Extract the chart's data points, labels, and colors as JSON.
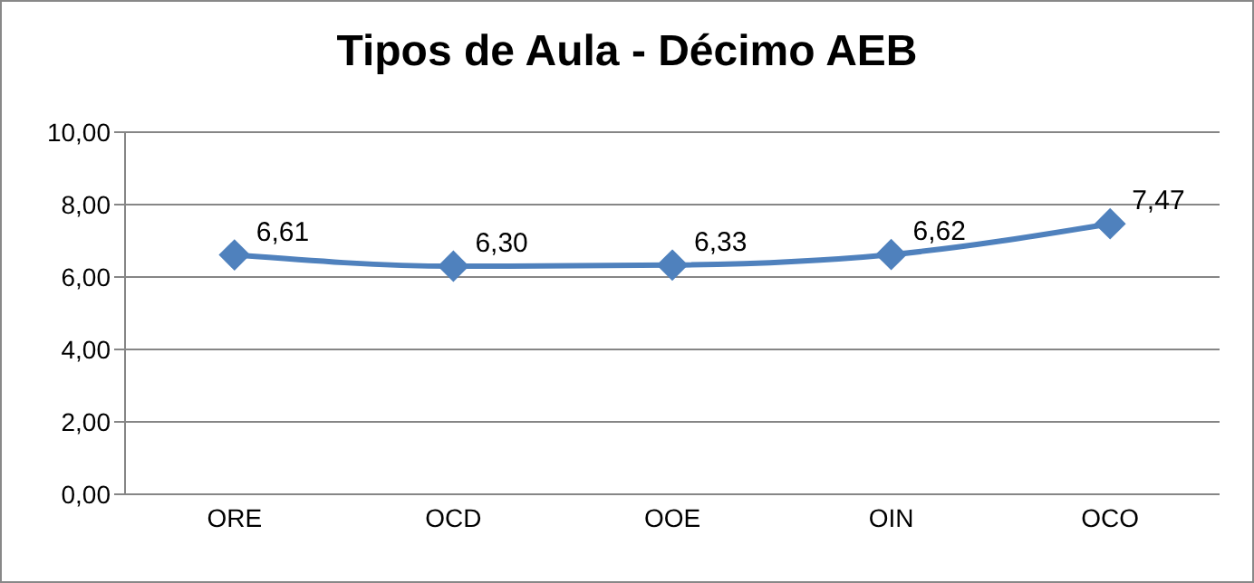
{
  "chart_data": {
    "type": "line",
    "title": "Tipos de Aula - Décimo  AEB",
    "categories": [
      "ORE",
      "OCD",
      "OOE",
      "OIN",
      "OCO"
    ],
    "series": [
      {
        "color": "#4f81bd",
        "values": [
          6.61,
          6.3,
          6.33,
          6.62,
          7.47
        ],
        "value_labels": [
          "6,61",
          "6,30",
          "6,33",
          "6,62",
          "7,47"
        ]
      }
    ],
    "ylim": [
      0,
      10
    ],
    "yticks": [
      {
        "value": 0,
        "label": "0,00"
      },
      {
        "value": 2,
        "label": "2,00"
      },
      {
        "value": 4,
        "label": "4,00"
      },
      {
        "value": 6,
        "label": "6,00"
      },
      {
        "value": 8,
        "label": "8,00"
      },
      {
        "value": 10,
        "label": "10,00"
      }
    ],
    "grid": "y",
    "marker": "diamond",
    "line_style": "solid"
  }
}
